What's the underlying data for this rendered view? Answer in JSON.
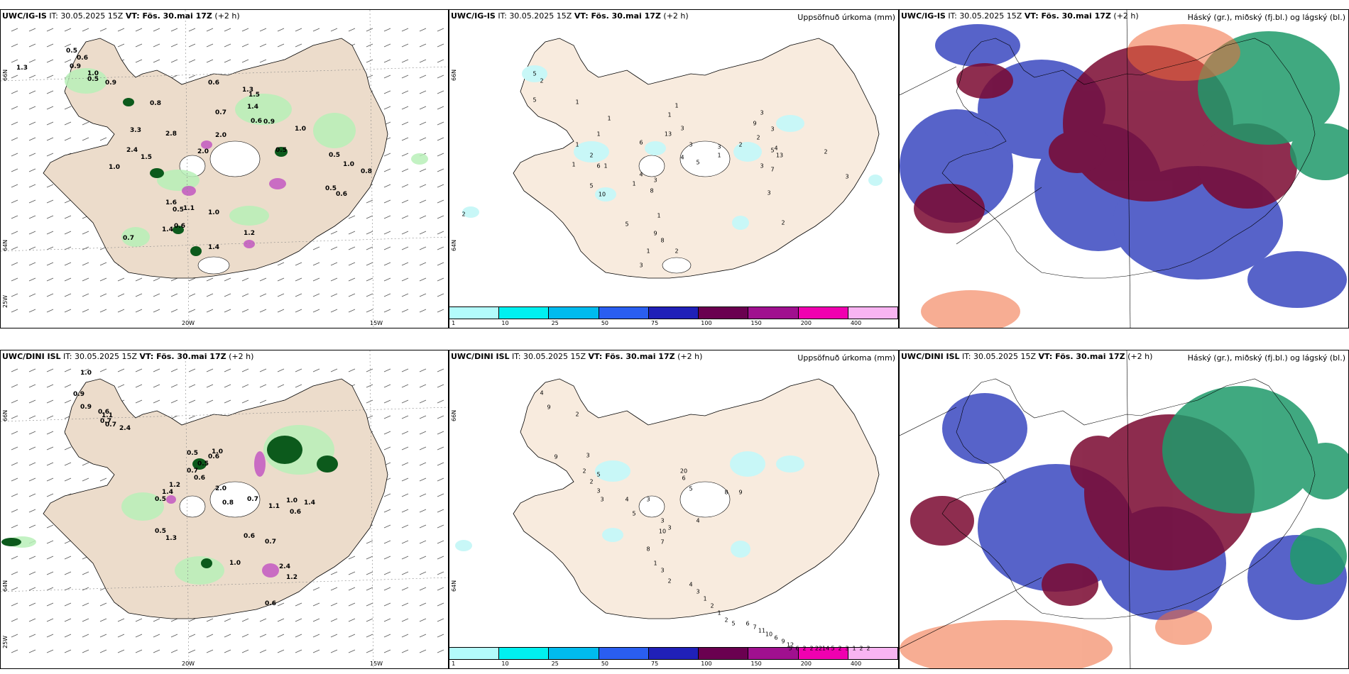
{
  "panels": {
    "top_left": {
      "title_model": "UWC/IG-IS",
      "title_it": " IT: 30.05.2025 15Z ",
      "title_vt": "VT: Fös. 30.mai 17Z",
      "title_lead": " (+2 h)",
      "labels": [
        "0.5",
        "0.9",
        "0.6",
        "1.3",
        "1.0",
        "0.5",
        "0.9",
        "0.8",
        "0.6",
        "1.3",
        "1.5",
        "1.4",
        "0.7",
        "0.6",
        "0.9",
        "1.0",
        "3.3",
        "2.8",
        "2.0",
        "0.5",
        "0.5",
        "2.4",
        "1.5",
        "2.0",
        "1.0",
        "1.0",
        "0.8",
        "0.5",
        "0.6",
        "1.6",
        "1.1",
        "0.5",
        "1.0",
        "0.6",
        "0.7",
        "1.4",
        "1.4",
        "1.2"
      ],
      "axes": {
        "lat1": "66N",
        "lat2": "64N",
        "lon1": "20W",
        "lon2": "15W",
        "lonw": "25W"
      }
    },
    "top_mid": {
      "title_model": "UWC/IG-IS",
      "title_it": " IT: 30.05.2025 15Z ",
      "title_vt": "VT: Fös. 30.mai 17Z",
      "title_lead": " (+2 h)",
      "right_title": "Uppsöfnuð úrkoma (mm)",
      "labels": [
        "2",
        "5",
        "2",
        "5",
        "1",
        "1",
        "1",
        "1",
        "2",
        "1",
        "1",
        "6",
        "5",
        "10",
        "6",
        "1",
        "1",
        "3",
        "13",
        "3",
        "4",
        "5",
        "4",
        "1",
        "8",
        "3",
        "5",
        "1",
        "9",
        "8",
        "1",
        "3",
        "2",
        "3",
        "1",
        "2",
        "2",
        "3",
        "4",
        "5",
        "9",
        "3",
        "3",
        "13",
        "7",
        "2",
        "2",
        "3",
        "3"
      ],
      "axes": {
        "lat1": "66N",
        "lat2": "64N"
      }
    },
    "top_right": {
      "title_model": "UWC/IG-IS",
      "title_it": " IT: 30.05.2025 15Z ",
      "title_vt": "VT: Fös. 30.mai 17Z",
      "title_lead": " (+2 h)",
      "right_title": "Háský (gr.), miðský (fj.bl.) og lágský (bl.)"
    },
    "bottom_left": {
      "title_model": "UWC/DINI ISL",
      "title_it": " IT: 30.05.2025 15Z ",
      "title_vt": "VT: Fös. 30.mai 17Z",
      "title_lead": " (+2 h)",
      "labels": [
        "1.0",
        "0.9",
        "0.9",
        "0.6",
        "0.7",
        "1.1",
        "0.7",
        "2.4",
        "0.5",
        "1.0",
        "0.6",
        "0.5",
        "0.7",
        "0.6",
        "1.2",
        "1.4",
        "0.5",
        "2.0",
        "0.8",
        "0.7",
        "1.1",
        "1.0",
        "0.6",
        "1.4",
        "0.5",
        "1.3",
        "0.6",
        "0.7",
        "1.0",
        "2.4",
        "1.2",
        "0.6"
      ],
      "axes": {
        "lat1": "66N",
        "lat2": "64N",
        "lon1": "20W",
        "lon2": "15W",
        "lonw": "25W"
      }
    },
    "bottom_mid": {
      "title_model": "UWC/DINI ISL",
      "title_it": " IT: 30.05.2025 15Z ",
      "title_vt": "VT: Fös. 30.mai 17Z",
      "title_lead": " (+2 h)",
      "right_title": "Uppsöfnuð úrkoma (mm)",
      "labels": [
        "4",
        "9",
        "2",
        "9",
        "3",
        "2",
        "5",
        "2",
        "3",
        "3",
        "4",
        "5",
        "3",
        "20",
        "6",
        "5",
        "8",
        "9",
        "4",
        "3",
        "3",
        "10",
        "7",
        "8",
        "1",
        "3",
        "2",
        "4",
        "3",
        "1",
        "2",
        "1",
        "2",
        "5",
        "6",
        "7",
        "11",
        "10",
        "6",
        "9",
        "12",
        "5",
        "6",
        "2",
        "2",
        "22",
        "14",
        "5",
        "2",
        "3",
        "1",
        "2",
        "2"
      ],
      "axes": {
        "lat1": "66N",
        "lat2": "64N"
      }
    },
    "bottom_right": {
      "title_model": "UWC/DINI ISL",
      "title_it": " IT: 30.05.2025 15Z ",
      "title_vt": "VT: Fös. 30.mai 17Z",
      "title_lead": " (+2 h)",
      "right_title": "Háský (gr.), miðský (fj.bl.) og lágský (bl.)"
    }
  },
  "legend": {
    "ticks": [
      "1",
      "10",
      "25",
      "50",
      "75",
      "100",
      "150",
      "200",
      "400"
    ],
    "colors": [
      "#b3fbfb",
      "#00f0f0",
      "#00bbee",
      "#2a5ef0",
      "#2020b8",
      "#6a0050",
      "#a0108f",
      "#f000b0",
      "#f8b4f2"
    ]
  },
  "colors": {
    "land": "#f5e9dc",
    "land_left": "#ecdccb",
    "green_light": "#b8f0b8",
    "green_dark": "#0c5a1c",
    "magenta": "#c050c0",
    "cyan": "#c8f7f7",
    "cloud_high": "#1f9a6a",
    "cloud_mid": "#7a0830",
    "cloud_low": "#3a48c0",
    "cloud_orange": "#f06a3a"
  }
}
